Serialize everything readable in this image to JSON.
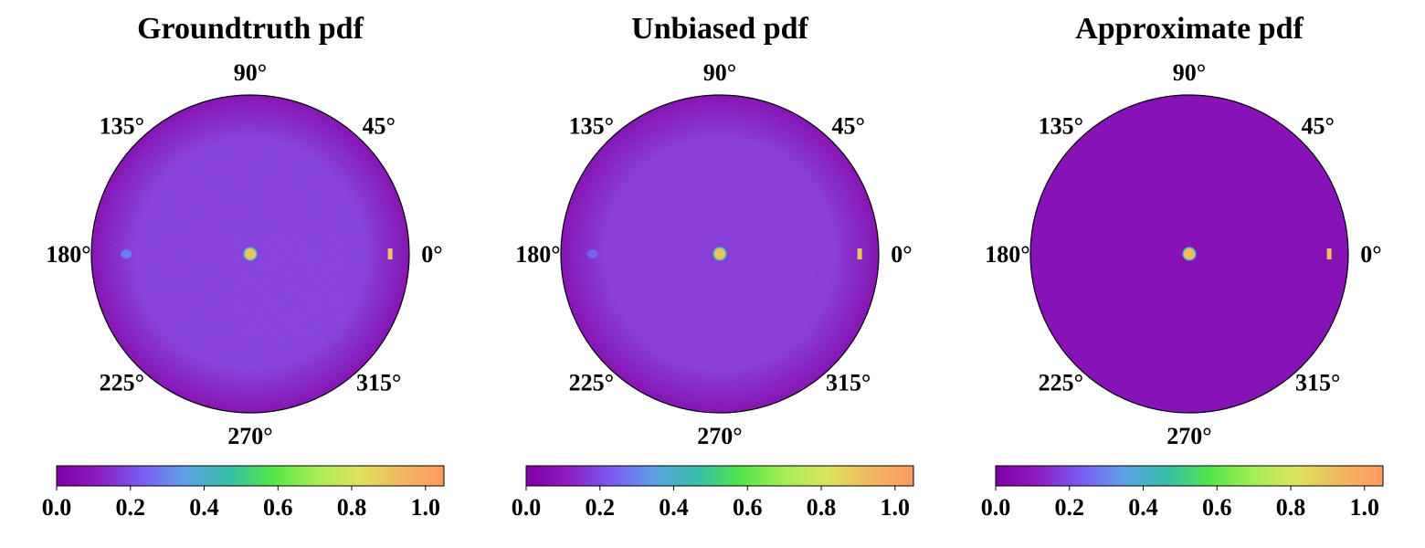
{
  "chart_data": [
    {
      "type": "polar-heatmap",
      "title": "Groundtruth pdf",
      "angle_labels": [
        "0°",
        "45°",
        "90°",
        "135°",
        "180°",
        "225°",
        "270°",
        "315°"
      ],
      "colorbar": {
        "colormap": "rainbow",
        "range": [
          0.0,
          1.05
        ],
        "ticks": [
          0.0,
          0.2,
          0.4,
          0.6,
          0.8,
          1.0
        ],
        "tick_labels": [
          "0.0",
          "0.2",
          "0.4",
          "0.6",
          "0.8",
          "1.0"
        ]
      },
      "background": {
        "inner_value": 0.17,
        "edge_value": 0.03,
        "noise": true
      },
      "hotspots": [
        {
          "angle_deg": 0,
          "radius": 0.0,
          "value": 0.9,
          "size": "medium"
        },
        {
          "angle_deg": 0,
          "radius": 0.88,
          "value": 0.88,
          "size": "small"
        },
        {
          "angle_deg": 180,
          "radius": 0.78,
          "value": 0.3,
          "size": "small"
        }
      ]
    },
    {
      "type": "polar-heatmap",
      "title": "Unbiased pdf",
      "angle_labels": [
        "0°",
        "45°",
        "90°",
        "135°",
        "180°",
        "225°",
        "270°",
        "315°"
      ],
      "colorbar": {
        "colormap": "rainbow",
        "range": [
          0.0,
          1.05
        ],
        "ticks": [
          0.0,
          0.2,
          0.4,
          0.6,
          0.8,
          1.0
        ],
        "tick_labels": [
          "0.0",
          "0.2",
          "0.4",
          "0.6",
          "0.8",
          "1.0"
        ]
      },
      "background": {
        "inner_value": 0.16,
        "edge_value": 0.03,
        "noise": true
      },
      "hotspots": [
        {
          "angle_deg": 0,
          "radius": 0.0,
          "value": 0.9,
          "size": "medium"
        },
        {
          "angle_deg": 0,
          "radius": 0.88,
          "value": 0.88,
          "size": "small"
        },
        {
          "angle_deg": 180,
          "radius": 0.8,
          "value": 0.25,
          "size": "small"
        }
      ]
    },
    {
      "type": "polar-heatmap",
      "title": "Approximate pdf",
      "angle_labels": [
        "0°",
        "45°",
        "90°",
        "135°",
        "180°",
        "225°",
        "270°",
        "315°"
      ],
      "colorbar": {
        "colormap": "rainbow",
        "range": [
          0.0,
          1.05
        ],
        "ticks": [
          0.0,
          0.2,
          0.4,
          0.6,
          0.8,
          1.0
        ],
        "tick_labels": [
          "0.0",
          "0.2",
          "0.4",
          "0.6",
          "0.8",
          "1.0"
        ]
      },
      "background": {
        "inner_value": 0.07,
        "edge_value": 0.07,
        "noise": false
      },
      "hotspots": [
        {
          "angle_deg": 0,
          "radius": 0.0,
          "value": 0.92,
          "size": "medium"
        },
        {
          "angle_deg": 0,
          "radius": 0.88,
          "value": 0.9,
          "size": "small"
        }
      ]
    }
  ],
  "colormap_stops": [
    "#7e00a6",
    "#8d1ec2",
    "#7a5cf5",
    "#5da2e6",
    "#36bfa8",
    "#53e548",
    "#a4ee55",
    "#dde35e",
    "#f1b760",
    "#fd9a62"
  ]
}
